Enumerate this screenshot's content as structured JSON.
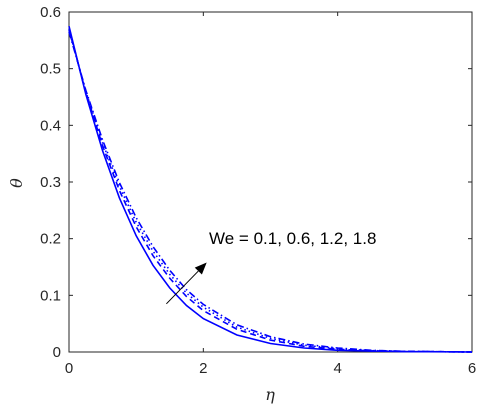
{
  "chart_data": {
    "type": "line",
    "title": "",
    "xlabel": "η",
    "ylabel": "θ",
    "xlim": [
      0,
      6
    ],
    "ylim": [
      0,
      0.6
    ],
    "xticks": [
      0,
      2,
      4,
      6
    ],
    "yticks": [
      0,
      0.1,
      0.2,
      0.3,
      0.4,
      0.5,
      0.6
    ],
    "grid": false,
    "legend": "none",
    "line_color": "#0000ff",
    "annotation": {
      "text": "We = 0.1, 0.6, 1.2, 1.8",
      "arrow_from": [
        1.45,
        0.085
      ],
      "arrow_to": [
        2.05,
        0.158
      ]
    },
    "series": [
      {
        "style": "solid",
        "x": [
          0,
          0.25,
          0.5,
          0.75,
          1.0,
          1.25,
          1.5,
          1.75,
          2.0,
          2.5,
          3.0,
          3.5,
          4.0,
          4.5,
          5.0,
          6.0
        ],
        "y": [
          0.575,
          0.455,
          0.355,
          0.272,
          0.205,
          0.153,
          0.113,
          0.082,
          0.059,
          0.03,
          0.015,
          0.007,
          0.003,
          0.0015,
          0.0007,
          0.0
        ]
      },
      {
        "style": "dashed",
        "x": [
          0,
          0.25,
          0.5,
          0.75,
          1.0,
          1.25,
          1.5,
          1.75,
          2.0,
          2.5,
          3.0,
          3.5,
          4.0,
          4.5,
          5.0,
          6.0
        ],
        "y": [
          0.57,
          0.458,
          0.364,
          0.285,
          0.221,
          0.17,
          0.13,
          0.098,
          0.073,
          0.04,
          0.021,
          0.01,
          0.005,
          0.002,
          0.001,
          0.0
        ]
      },
      {
        "style": "dotted",
        "x": [
          0,
          0.25,
          0.5,
          0.75,
          1.0,
          1.25,
          1.5,
          1.75,
          2.0,
          2.5,
          3.0,
          3.5,
          4.0,
          4.5,
          5.0,
          6.0
        ],
        "y": [
          0.568,
          0.46,
          0.369,
          0.292,
          0.229,
          0.178,
          0.137,
          0.104,
          0.079,
          0.044,
          0.024,
          0.012,
          0.006,
          0.0025,
          0.001,
          0.0
        ]
      },
      {
        "style": "dashdot",
        "x": [
          0,
          0.25,
          0.5,
          0.75,
          1.0,
          1.25,
          1.5,
          1.75,
          2.0,
          2.5,
          3.0,
          3.5,
          4.0,
          4.5,
          5.0,
          6.0
        ],
        "y": [
          0.565,
          0.462,
          0.374,
          0.299,
          0.237,
          0.186,
          0.144,
          0.11,
          0.084,
          0.048,
          0.027,
          0.014,
          0.007,
          0.003,
          0.0012,
          0.0
        ]
      }
    ]
  }
}
